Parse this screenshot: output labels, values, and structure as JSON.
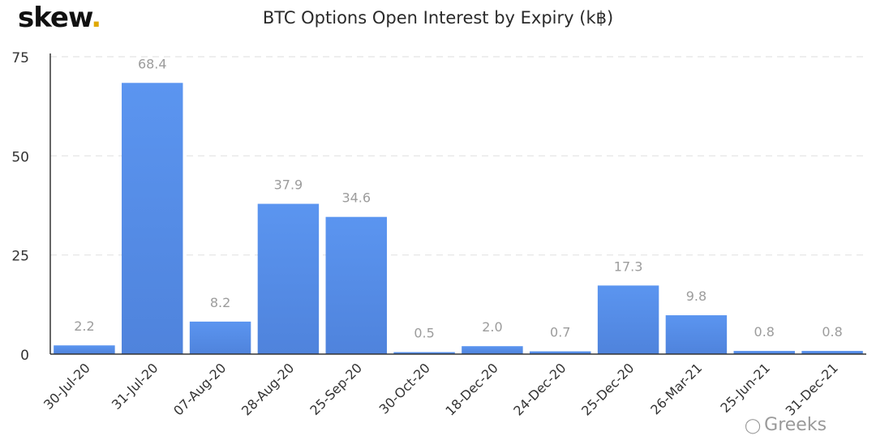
{
  "logo": {
    "text": "skew",
    "dot": "."
  },
  "watermark": {
    "text": "Greeks",
    "icon": "wechat-icon"
  },
  "colors": {
    "bar_top": "#5b95f0",
    "bar_bottom": "#4f83dc",
    "grid": "#e4e4e4",
    "axis": "#333333"
  },
  "chart_data": {
    "type": "bar",
    "title": "BTC Options Open Interest by Expiry (k฿)",
    "xlabel": "",
    "ylabel": "",
    "ylim": [
      0,
      75
    ],
    "yticks": [
      0,
      25,
      50,
      75
    ],
    "grid": true,
    "categories": [
      "30-Jul-20",
      "31-Jul-20",
      "07-Aug-20",
      "28-Aug-20",
      "25-Sep-20",
      "30-Oct-20",
      "18-Dec-20",
      "24-Dec-20",
      "25-Dec-20",
      "26-Mar-21",
      "25-Jun-21",
      "31-Dec-21"
    ],
    "values": [
      2.2,
      68.4,
      8.2,
      37.9,
      34.6,
      0.5,
      2.0,
      0.7,
      17.3,
      9.8,
      0.8,
      0.8
    ],
    "value_labels": [
      "2.2",
      "68.4",
      "8.2",
      "37.9",
      "34.6",
      "0.5",
      "2.0",
      "0.7",
      "17.3",
      "9.8",
      "0.8",
      "0.8"
    ]
  }
}
